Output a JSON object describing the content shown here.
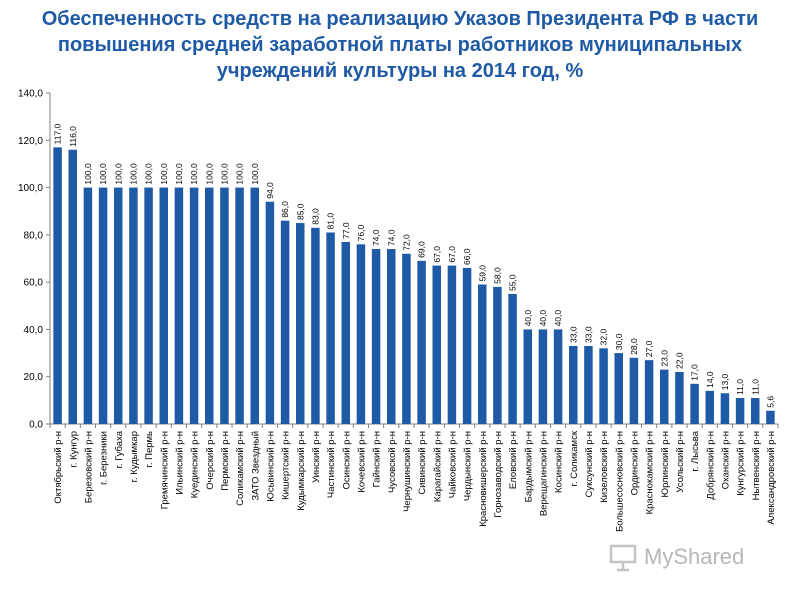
{
  "title": "Обеспеченность средств на реализацию Указов Президента РФ в части повышения средней заработной платы работников муниципальных учреждений культуры на 2014 год, %",
  "watermark": "MyShared",
  "colors": {
    "bar": "#1f5aa6",
    "title": "#1f5aa6"
  },
  "chart_data": {
    "type": "bar",
    "title": "Обеспеченность средств на реализацию Указов Президента РФ в части повышения средней заработной платы работников муниципальных учреждений культуры на 2014 год, %",
    "ylim": [
      0,
      140
    ],
    "yticks": [
      "0,0",
      "20,0",
      "40,0",
      "60,0",
      "80,0",
      "100,0",
      "120,0",
      "140,0"
    ],
    "grid": false,
    "categories": [
      "Октябрьский р-н",
      "г. Кунгур",
      "Березовский р-н",
      "г. Березники",
      "г. Губаха",
      "г. Кудымкар",
      "г. Пермь",
      "Гремячинский р-н",
      "Ильинский р-н",
      "Куединский р-н",
      "Очерский р-н",
      "Пермский р-н",
      "Соликамский р-н",
      "ЗАТО Звездный",
      "Юсьвинский р-н",
      "Кишертский р-н",
      "Кудымкарский р-н",
      "Уинский р-н",
      "Частинский р-н",
      "Осинский р-н",
      "Кочевский р-н",
      "Гайнский р-н",
      "Чусовской р-н",
      "Чернушинский р-н",
      "Сивинский р-н",
      "Карагайский р-н",
      "Чайковский р-н",
      "Чердынский р-н",
      "Красновишерский р-н",
      "Горнозаводский р-н",
      "Еловский р-н",
      "Бардымский р-н",
      "Верещагинский р-н",
      "Косинский р-н",
      "г. Соликамск",
      "Суксунский р-н",
      "Кизеловский р-н",
      "Большесосновский р-н",
      "Ординский р-н",
      "Краснокамский р-н",
      "Юрлинский р-н",
      "Усольский р-н",
      "г. Лысьва",
      "Добрянский р-н",
      "Оханский р-н",
      "Кунгурский р-н",
      "Нытвенский р-н",
      "Александровский р-н"
    ],
    "values": [
      117.0,
      116.0,
      100.0,
      100.0,
      100.0,
      100.0,
      100.0,
      100.0,
      100.0,
      100.0,
      100.0,
      100.0,
      100.0,
      100.0,
      94.0,
      86.0,
      85.0,
      83.0,
      81.0,
      77.0,
      76.0,
      74.0,
      74.0,
      72.0,
      69.0,
      67.0,
      67.0,
      66.0,
      59.0,
      58.0,
      55.0,
      40.0,
      40.0,
      40.0,
      33.0,
      33.0,
      32.0,
      30.0,
      28.0,
      27.0,
      23.0,
      22.0,
      17.0,
      14.0,
      13.0,
      11.0,
      11.0,
      5.6
    ],
    "value_labels": [
      "117,0",
      "116,0",
      "100,0",
      "100,0",
      "100,0",
      "100,0",
      "100,0",
      "100,0",
      "100,0",
      "100,0",
      "100,0",
      "100,0",
      "100,0",
      "100,0",
      "94,0",
      "86,0",
      "85,0",
      "83,0",
      "81,0",
      "77,0",
      "76,0",
      "74,0",
      "74,0",
      "72,0",
      "69,0",
      "67,0",
      "67,0",
      "66,0",
      "59,0",
      "58,0",
      "55,0",
      "40,0",
      "40,0",
      "40,0",
      "33,0",
      "33,0",
      "32,0",
      "30,0",
      "28,0",
      "27,0",
      "23,0",
      "22,0",
      "17,0",
      "14,0",
      "13,0",
      "11,0",
      "11,0",
      "5,6"
    ]
  }
}
